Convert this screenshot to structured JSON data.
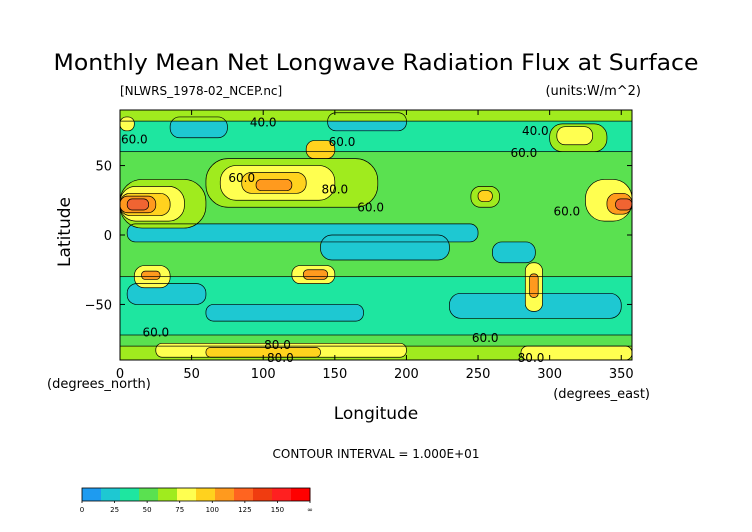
{
  "chart_data": {
    "type": "heatmap",
    "title": "Monthly Mean Net Longwave Radiation Flux at Surface",
    "file_label": "[NLWRS_1978-02_NCEP.nc]",
    "units_label": "(units:W/m^2)",
    "xlabel": "Longitude",
    "ylabel": "Latitude",
    "x_unit_label": "(degrees_east)",
    "y_unit_label": "(degrees_north)",
    "x_ticks": [
      0,
      50,
      100,
      150,
      200,
      250,
      300,
      350
    ],
    "y_ticks": [
      50,
      0,
      -50
    ],
    "xlim": [
      0,
      357.5
    ],
    "ylim": [
      -90,
      90
    ],
    "contour_interval_text": "CONTOUR INTERVAL = 1.000E+01",
    "contour_labels": [
      {
        "text": "60.0",
        "lon": 10,
        "lat": 66
      },
      {
        "text": "60.0",
        "lon": 85,
        "lat": 38
      },
      {
        "text": "80.0",
        "lon": 150,
        "lat": 30
      },
      {
        "text": "60.0",
        "lon": 155,
        "lat": 64
      },
      {
        "text": "40.0",
        "lon": 100,
        "lat": 78
      },
      {
        "text": "60.0",
        "lon": 175,
        "lat": 17
      },
      {
        "text": "40.0",
        "lon": 290,
        "lat": 72
      },
      {
        "text": "60.0",
        "lon": 282,
        "lat": 56
      },
      {
        "text": "60.0",
        "lon": 312,
        "lat": 14
      },
      {
        "text": "60.0",
        "lon": 25,
        "lat": -73
      },
      {
        "text": "80.0",
        "lon": 110,
        "lat": -82
      },
      {
        "text": "80.0",
        "lon": 112,
        "lat": -93
      },
      {
        "text": "60.0",
        "lon": 255,
        "lat": -77
      },
      {
        "text": "80.0",
        "lon": 287,
        "lat": -93
      }
    ],
    "colorbar": {
      "tick_labels": [
        "0",
        "25",
        "50",
        "75",
        "100",
        "125",
        "150",
        "∞"
      ],
      "colors": [
        "#1e9bf0",
        "#1ec8d2",
        "#1ee6a0",
        "#5ae150",
        "#a0eb1e",
        "#ffff50",
        "#ffd21e",
        "#ff9a1e",
        "#ff6420",
        "#f03c10",
        "#ff2020",
        "#ff0000"
      ]
    },
    "field_colors": {
      "level_35": "#1ec8d2",
      "level_45": "#1ee6a0",
      "level_55": "#5ae150",
      "level_65": "#a0eb1e",
      "level_75": "#ffff50",
      "level_85": "#ffd21e",
      "level_95": "#ff9a1e",
      "level_105": "#f06432",
      "level_120": "#d24614"
    },
    "regions": [
      {
        "level": 45,
        "lon": [
          0,
          357.5
        ],
        "lat": [
          -90,
          90
        ]
      },
      {
        "level": 55,
        "lon": [
          0,
          357.5
        ],
        "lat": [
          -30,
          60
        ]
      },
      {
        "level": 35,
        "lon": [
          5,
          250
        ],
        "lat": [
          -5,
          8
        ]
      },
      {
        "level": 35,
        "lon": [
          140,
          230
        ],
        "lat": [
          -18,
          0
        ]
      },
      {
        "level": 35,
        "lon": [
          260,
          290
        ],
        "lat": [
          -20,
          -5
        ]
      },
      {
        "level": 35,
        "lon": [
          5,
          60
        ],
        "lat": [
          -50,
          -35
        ]
      },
      {
        "level": 35,
        "lon": [
          230,
          350
        ],
        "lat": [
          -60,
          -42
        ]
      },
      {
        "level": 35,
        "lon": [
          60,
          170
        ],
        "lat": [
          -62,
          -50
        ]
      },
      {
        "level": 35,
        "lon": [
          35,
          75
        ],
        "lat": [
          70,
          85
        ]
      },
      {
        "level": 35,
        "lon": [
          145,
          200
        ],
        "lat": [
          75,
          88
        ]
      },
      {
        "level": 55,
        "lon": [
          0,
          357.5
        ],
        "lat": [
          -90,
          -72
        ]
      },
      {
        "level": 65,
        "lon": [
          0,
          357.5
        ],
        "lat": [
          -90,
          -80
        ]
      },
      {
        "level": 75,
        "lon": [
          25,
          200
        ],
        "lat": [
          -88,
          -78
        ]
      },
      {
        "level": 85,
        "lon": [
          60,
          140
        ],
        "lat": [
          -88,
          -81
        ]
      },
      {
        "level": 75,
        "lon": [
          280,
          357.5
        ],
        "lat": [
          -90,
          -80
        ]
      },
      {
        "level": 65,
        "lon": [
          0,
          357.5
        ],
        "lat": [
          82,
          90
        ]
      },
      {
        "level": 65,
        "lon": [
          60,
          180
        ],
        "lat": [
          20,
          55
        ]
      },
      {
        "level": 75,
        "lon": [
          70,
          150
        ],
        "lat": [
          25,
          50
        ]
      },
      {
        "level": 85,
        "lon": [
          85,
          130
        ],
        "lat": [
          30,
          45
        ]
      },
      {
        "level": 95,
        "lon": [
          95,
          120
        ],
        "lat": [
          32,
          40
        ]
      },
      {
        "level": 65,
        "lon": [
          0,
          60
        ],
        "lat": [
          5,
          40
        ]
      },
      {
        "level": 75,
        "lon": [
          0,
          45
        ],
        "lat": [
          10,
          35
        ]
      },
      {
        "level": 85,
        "lon": [
          0,
          35
        ],
        "lat": [
          14,
          30
        ]
      },
      {
        "level": 95,
        "lon": [
          0,
          25
        ],
        "lat": [
          16,
          28
        ]
      },
      {
        "level": 105,
        "lon": [
          5,
          20
        ],
        "lat": [
          18,
          26
        ]
      },
      {
        "level": 75,
        "lon": [
          325,
          357.5
        ],
        "lat": [
          10,
          40
        ]
      },
      {
        "level": 95,
        "lon": [
          340,
          357.5
        ],
        "lat": [
          15,
          30
        ]
      },
      {
        "level": 105,
        "lon": [
          346,
          357.5
        ],
        "lat": [
          18,
          26
        ]
      },
      {
        "level": 65,
        "lon": [
          300,
          340
        ],
        "lat": [
          60,
          80
        ]
      },
      {
        "level": 75,
        "lon": [
          305,
          330
        ],
        "lat": [
          65,
          78
        ]
      },
      {
        "level": 65,
        "lon": [
          245,
          265
        ],
        "lat": [
          20,
          35
        ]
      },
      {
        "level": 85,
        "lon": [
          250,
          260
        ],
        "lat": [
          24,
          32
        ]
      },
      {
        "level": 75,
        "lon": [
          120,
          150
        ],
        "lat": [
          -35,
          -22
        ]
      },
      {
        "level": 95,
        "lon": [
          128,
          145
        ],
        "lat": [
          -32,
          -25
        ]
      },
      {
        "level": 75,
        "lon": [
          10,
          35
        ],
        "lat": [
          -38,
          -22
        ]
      },
      {
        "level": 95,
        "lon": [
          15,
          28
        ],
        "lat": [
          -32,
          -26
        ]
      },
      {
        "level": 75,
        "lon": [
          283,
          295
        ],
        "lat": [
          -55,
          -20
        ]
      },
      {
        "level": 95,
        "lon": [
          286,
          292
        ],
        "lat": [
          -45,
          -28
        ]
      },
      {
        "level": 85,
        "lon": [
          130,
          150
        ],
        "lat": [
          55,
          68
        ]
      },
      {
        "level": 75,
        "lon": [
          0,
          10
        ],
        "lat": [
          75,
          85
        ]
      }
    ]
  }
}
